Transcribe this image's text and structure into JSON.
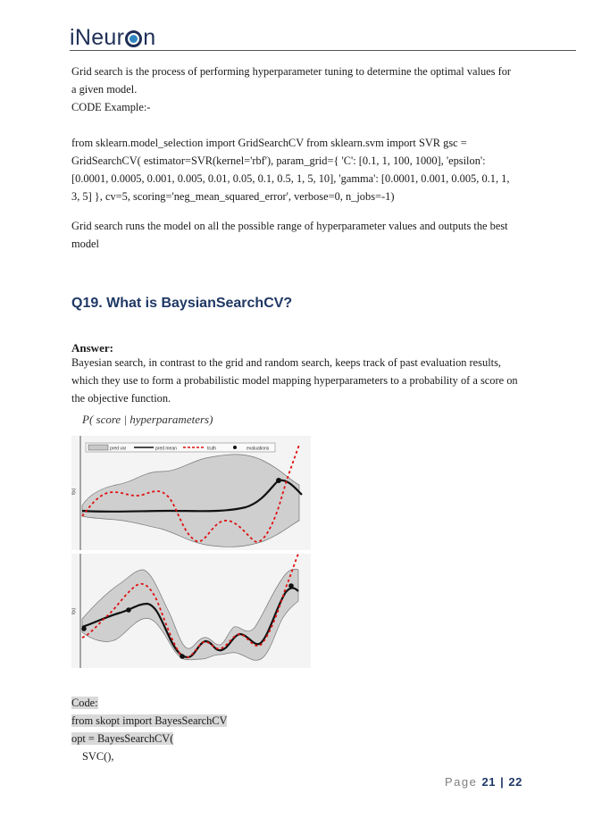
{
  "header": {
    "logo_text_pre": "iNeur",
    "logo_text_post": "n"
  },
  "body": {
    "p1_line1": "Grid search is the process of performing hyperparameter tuning to determine the optimal values for",
    "p1_line2": "a given model.",
    "p1_line3": "CODE Example:-",
    "code1_line1": "from sklearn.model_selection import GridSearchCV from sklearn.svm import SVR gsc =",
    "code1_line2": "GridSearchCV( estimator=SVR(kernel='rbf'), param_grid={ 'C': [0.1, 1, 100, 1000], 'epsilon':",
    "code1_line3": "[0.0001, 0.0005, 0.001, 0.005, 0.01, 0.05, 0.1, 0.5, 1, 5, 10], 'gamma': [0.0001, 0.001, 0.005, 0.1, 1,",
    "code1_line4": "3, 5] }, cv=5, scoring='neg_mean_squared_error', verbose=0, n_jobs=-1)",
    "p2_line1": "Grid search runs the model on all the possible range of hyperparameter values and outputs the best",
    "p2_line2": "model",
    "question": "Q19. What is BaysianSearchCV?",
    "answer_heading": "Answer:",
    "ans_line1": "Bayesian search, in contrast to the grid and random search, keeps track of past evaluation results,",
    "ans_line2": "which they use to form a probabilistic model mapping hyperparameters to a probability of a score on",
    "ans_line3": "the objective function.",
    "figure_label": "P( score | hyperparameters)",
    "code_heading": "Code:",
    "code2_line1": "from skopt import BayesSearchCV",
    "code2_line2": "opt = BayesSearchCV(",
    "code2_line3": "SVC(),"
  },
  "figure": {
    "legend_pred_var": "pred var",
    "legend_pred_mean": "pred mean",
    "legend_truth": "truth",
    "legend_evaluations": "evaluations",
    "ylabel": "f(x)"
  },
  "footer": {
    "page_word": "Page",
    "page_current": "21",
    "page_total": "22"
  }
}
